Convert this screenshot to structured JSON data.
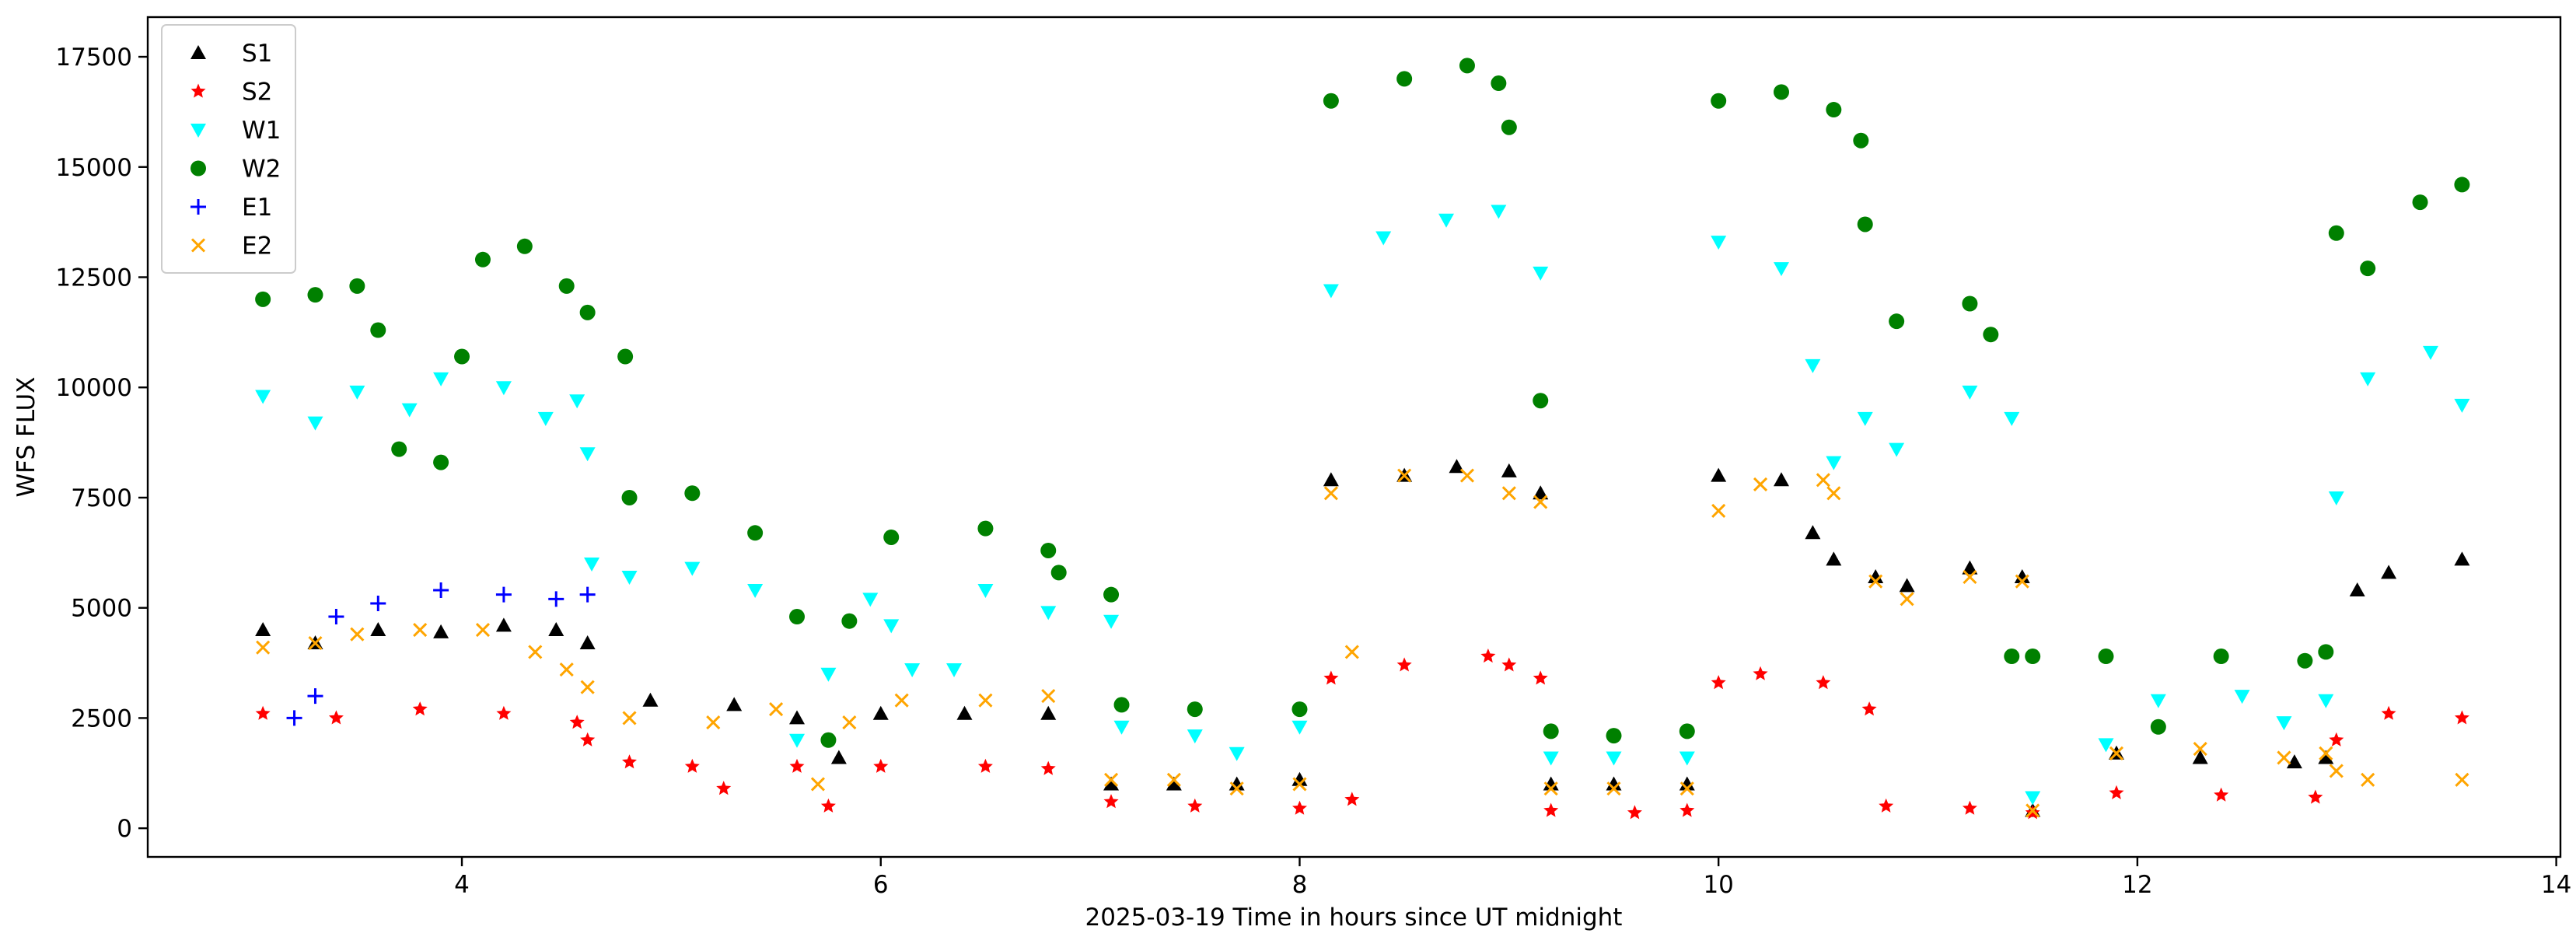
{
  "chart_data": {
    "type": "scatter",
    "title": "",
    "xlabel": "2025-03-19  Time in hours since UT midnight",
    "ylabel": "WFS FLUX",
    "xlim": [
      2.5,
      14.02
    ],
    "ylim": [
      -650,
      18400
    ],
    "xticks": [
      4,
      6,
      8,
      10,
      12,
      14
    ],
    "yticks": [
      0,
      2500,
      5000,
      7500,
      10000,
      12500,
      15000,
      17500
    ],
    "grid": false,
    "legend_position": "top-left",
    "series": [
      {
        "name": "S1",
        "color": "#000000",
        "marker": "triangle-up",
        "points": [
          [
            3.05,
            4500
          ],
          [
            3.3,
            4200
          ],
          [
            3.6,
            4500
          ],
          [
            3.9,
            4450
          ],
          [
            4.2,
            4600
          ],
          [
            4.45,
            4500
          ],
          [
            4.6,
            4200
          ],
          [
            4.9,
            2900
          ],
          [
            5.3,
            2800
          ],
          [
            5.6,
            2500
          ],
          [
            5.8,
            1600
          ],
          [
            6.0,
            2600
          ],
          [
            6.4,
            2600
          ],
          [
            6.8,
            2600
          ],
          [
            7.1,
            1000
          ],
          [
            7.4,
            1000
          ],
          [
            7.7,
            1000
          ],
          [
            8.0,
            1100
          ],
          [
            8.15,
            7900
          ],
          [
            8.5,
            8000
          ],
          [
            8.75,
            8200
          ],
          [
            9.0,
            8100
          ],
          [
            9.15,
            7600
          ],
          [
            9.2,
            1000
          ],
          [
            9.5,
            1000
          ],
          [
            9.85,
            1000
          ],
          [
            10.0,
            8000
          ],
          [
            10.3,
            7900
          ],
          [
            10.45,
            6700
          ],
          [
            10.55,
            6100
          ],
          [
            10.75,
            5700
          ],
          [
            10.9,
            5500
          ],
          [
            11.2,
            5900
          ],
          [
            11.45,
            5700
          ],
          [
            11.5,
            400
          ],
          [
            11.9,
            1700
          ],
          [
            12.3,
            1600
          ],
          [
            12.75,
            1500
          ],
          [
            12.9,
            1600
          ],
          [
            13.05,
            5400
          ],
          [
            13.2,
            5800
          ],
          [
            13.55,
            6100
          ]
        ]
      },
      {
        "name": "S2",
        "color": "#ff0000",
        "marker": "star",
        "points": [
          [
            3.05,
            2600
          ],
          [
            3.4,
            2500
          ],
          [
            3.8,
            2700
          ],
          [
            4.2,
            2600
          ],
          [
            4.55,
            2400
          ],
          [
            4.6,
            2000
          ],
          [
            4.8,
            1500
          ],
          [
            5.1,
            1400
          ],
          [
            5.25,
            900
          ],
          [
            5.6,
            1400
          ],
          [
            5.75,
            500
          ],
          [
            6.0,
            1400
          ],
          [
            6.5,
            1400
          ],
          [
            6.8,
            1350
          ],
          [
            7.1,
            600
          ],
          [
            7.5,
            500
          ],
          [
            8.0,
            450
          ],
          [
            8.15,
            3400
          ],
          [
            8.25,
            650
          ],
          [
            8.5,
            3700
          ],
          [
            8.9,
            3900
          ],
          [
            9.0,
            3700
          ],
          [
            9.15,
            3400
          ],
          [
            9.2,
            400
          ],
          [
            9.6,
            350
          ],
          [
            9.85,
            400
          ],
          [
            10.0,
            3300
          ],
          [
            10.2,
            3500
          ],
          [
            10.5,
            3300
          ],
          [
            10.72,
            2700
          ],
          [
            10.8,
            500
          ],
          [
            11.2,
            450
          ],
          [
            11.5,
            350
          ],
          [
            11.9,
            800
          ],
          [
            12.4,
            750
          ],
          [
            12.85,
            700
          ],
          [
            12.95,
            2000
          ],
          [
            13.2,
            2600
          ],
          [
            13.55,
            2500
          ]
        ]
      },
      {
        "name": "W1",
        "color": "#00ffff",
        "marker": "triangle-down",
        "points": [
          [
            3.05,
            9800
          ],
          [
            3.3,
            9200
          ],
          [
            3.5,
            9900
          ],
          [
            3.75,
            9500
          ],
          [
            3.9,
            10200
          ],
          [
            4.2,
            10000
          ],
          [
            4.4,
            9300
          ],
          [
            4.55,
            9700
          ],
          [
            4.6,
            8500
          ],
          [
            4.62,
            6000
          ],
          [
            4.8,
            5700
          ],
          [
            5.1,
            5900
          ],
          [
            5.4,
            5400
          ],
          [
            5.6,
            2000
          ],
          [
            5.75,
            3500
          ],
          [
            5.95,
            5200
          ],
          [
            6.05,
            4600
          ],
          [
            6.15,
            3600
          ],
          [
            6.35,
            3600
          ],
          [
            6.5,
            5400
          ],
          [
            6.8,
            4900
          ],
          [
            7.1,
            4700
          ],
          [
            7.15,
            2300
          ],
          [
            7.5,
            2100
          ],
          [
            7.7,
            1700
          ],
          [
            8.0,
            2300
          ],
          [
            8.15,
            12200
          ],
          [
            8.4,
            13400
          ],
          [
            8.7,
            13800
          ],
          [
            8.95,
            14000
          ],
          [
            9.15,
            12600
          ],
          [
            9.2,
            1600
          ],
          [
            9.5,
            1600
          ],
          [
            9.85,
            1600
          ],
          [
            10.0,
            13300
          ],
          [
            10.3,
            12700
          ],
          [
            10.45,
            10500
          ],
          [
            10.55,
            8300
          ],
          [
            10.7,
            9300
          ],
          [
            10.85,
            8600
          ],
          [
            11.2,
            9900
          ],
          [
            11.4,
            9300
          ],
          [
            11.5,
            700
          ],
          [
            11.85,
            1900
          ],
          [
            12.1,
            2900
          ],
          [
            12.5,
            3000
          ],
          [
            12.7,
            2400
          ],
          [
            12.9,
            2900
          ],
          [
            12.95,
            7500
          ],
          [
            13.1,
            10200
          ],
          [
            13.4,
            10800
          ],
          [
            13.55,
            9600
          ]
        ]
      },
      {
        "name": "W2",
        "color": "#008000",
        "marker": "circle",
        "points": [
          [
            3.05,
            12000
          ],
          [
            3.3,
            12100
          ],
          [
            3.5,
            12300
          ],
          [
            3.6,
            11300
          ],
          [
            3.7,
            8600
          ],
          [
            3.9,
            8300
          ],
          [
            4.0,
            10700
          ],
          [
            4.1,
            12900
          ],
          [
            4.3,
            13200
          ],
          [
            4.5,
            12300
          ],
          [
            4.6,
            11700
          ],
          [
            4.78,
            10700
          ],
          [
            4.8,
            7500
          ],
          [
            5.1,
            7600
          ],
          [
            5.4,
            6700
          ],
          [
            5.6,
            4800
          ],
          [
            5.75,
            2000
          ],
          [
            5.85,
            4700
          ],
          [
            6.05,
            6600
          ],
          [
            6.5,
            6800
          ],
          [
            6.8,
            6300
          ],
          [
            6.85,
            5800
          ],
          [
            7.1,
            5300
          ],
          [
            7.15,
            2800
          ],
          [
            7.5,
            2700
          ],
          [
            8.0,
            2700
          ],
          [
            8.15,
            16500
          ],
          [
            8.5,
            17000
          ],
          [
            8.8,
            17300
          ],
          [
            8.95,
            16900
          ],
          [
            9.0,
            15900
          ],
          [
            9.15,
            9700
          ],
          [
            9.2,
            2200
          ],
          [
            9.5,
            2100
          ],
          [
            9.85,
            2200
          ],
          [
            10.0,
            16500
          ],
          [
            10.3,
            16700
          ],
          [
            10.55,
            16300
          ],
          [
            10.68,
            15600
          ],
          [
            10.7,
            13700
          ],
          [
            10.85,
            11500
          ],
          [
            11.2,
            11900
          ],
          [
            11.3,
            11200
          ],
          [
            11.4,
            3900
          ],
          [
            11.5,
            3900
          ],
          [
            11.85,
            3900
          ],
          [
            12.1,
            2300
          ],
          [
            12.4,
            3900
          ],
          [
            12.8,
            3800
          ],
          [
            12.9,
            4000
          ],
          [
            12.95,
            13500
          ],
          [
            13.1,
            12700
          ],
          [
            13.35,
            14200
          ],
          [
            13.55,
            14600
          ]
        ]
      },
      {
        "name": "E1",
        "color": "#0000ff",
        "marker": "plus",
        "points": [
          [
            3.2,
            2500
          ],
          [
            3.3,
            3000
          ],
          [
            3.4,
            4800
          ],
          [
            3.6,
            5100
          ],
          [
            3.9,
            5400
          ],
          [
            4.2,
            5300
          ],
          [
            4.45,
            5200
          ],
          [
            4.6,
            5300
          ]
        ]
      },
      {
        "name": "E2",
        "color": "#ffa500",
        "marker": "x",
        "points": [
          [
            3.05,
            4100
          ],
          [
            3.3,
            4200
          ],
          [
            3.5,
            4400
          ],
          [
            3.8,
            4500
          ],
          [
            4.1,
            4500
          ],
          [
            4.35,
            4000
          ],
          [
            4.5,
            3600
          ],
          [
            4.6,
            3200
          ],
          [
            4.8,
            2500
          ],
          [
            5.2,
            2400
          ],
          [
            5.5,
            2700
          ],
          [
            5.7,
            1000
          ],
          [
            5.85,
            2400
          ],
          [
            6.1,
            2900
          ],
          [
            6.5,
            2900
          ],
          [
            6.8,
            3000
          ],
          [
            7.1,
            1100
          ],
          [
            7.4,
            1100
          ],
          [
            7.7,
            900
          ],
          [
            8.0,
            1000
          ],
          [
            8.15,
            7600
          ],
          [
            8.25,
            4000
          ],
          [
            8.5,
            8000
          ],
          [
            8.8,
            8000
          ],
          [
            9.0,
            7600
          ],
          [
            9.15,
            7400
          ],
          [
            9.2,
            900
          ],
          [
            9.5,
            900
          ],
          [
            9.85,
            900
          ],
          [
            10.0,
            7200
          ],
          [
            10.2,
            7800
          ],
          [
            10.5,
            7900
          ],
          [
            10.55,
            7600
          ],
          [
            10.75,
            5600
          ],
          [
            10.9,
            5200
          ],
          [
            11.2,
            5700
          ],
          [
            11.45,
            5600
          ],
          [
            11.5,
            400
          ],
          [
            11.9,
            1700
          ],
          [
            12.3,
            1800
          ],
          [
            12.7,
            1600
          ],
          [
            12.9,
            1700
          ],
          [
            12.95,
            1300
          ],
          [
            13.1,
            1100
          ],
          [
            13.55,
            1100
          ]
        ]
      }
    ]
  }
}
